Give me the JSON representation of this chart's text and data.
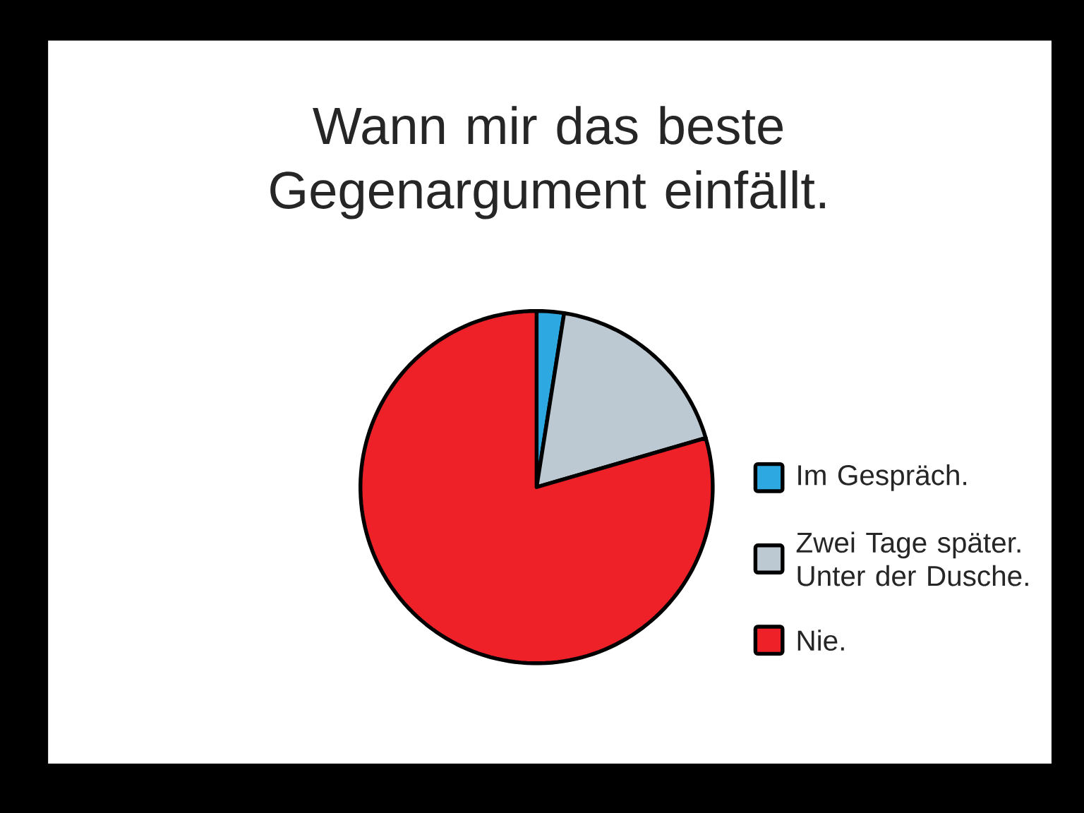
{
  "chart_data": {
    "type": "pie",
    "title": "Wann mir das beste Gegenargument einfällt.",
    "categories": [
      "Im Gespräch.",
      "Zwei Tage später. Unter der Dusche.",
      "Nie."
    ],
    "values": [
      2.5,
      18,
      79.5
    ],
    "colors": [
      "#2ea8e0",
      "#bcc8d2",
      "#ee2129"
    ],
    "legend": "right"
  }
}
